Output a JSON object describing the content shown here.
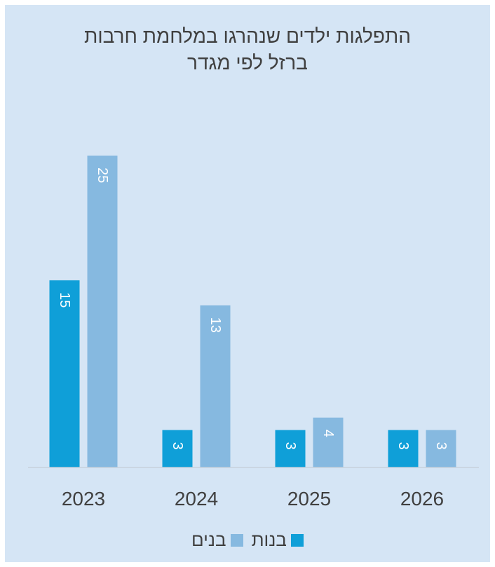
{
  "chart_data": {
    "type": "bar",
    "title_lines": [
      "התפלגות ילדים שנהרגו במלחמת חרבות",
      "ברזל לפי מגדר"
    ],
    "categories": [
      "2023",
      "2024",
      "2025",
      "2026"
    ],
    "series": [
      {
        "name": "בנות",
        "color": "#0f9fd8",
        "values": [
          15,
          3,
          3,
          3
        ]
      },
      {
        "name": "בנים",
        "color": "#86b9e0",
        "values": [
          25,
          13,
          4,
          3
        ]
      }
    ],
    "ylim": [
      0,
      25
    ],
    "grid": false,
    "legend_position": "bottom",
    "data_labels": "inside-end-rotated"
  },
  "colors": {
    "background": "#d5e5f5",
    "text": "#404040",
    "axis_line": "#c6d1dc"
  }
}
